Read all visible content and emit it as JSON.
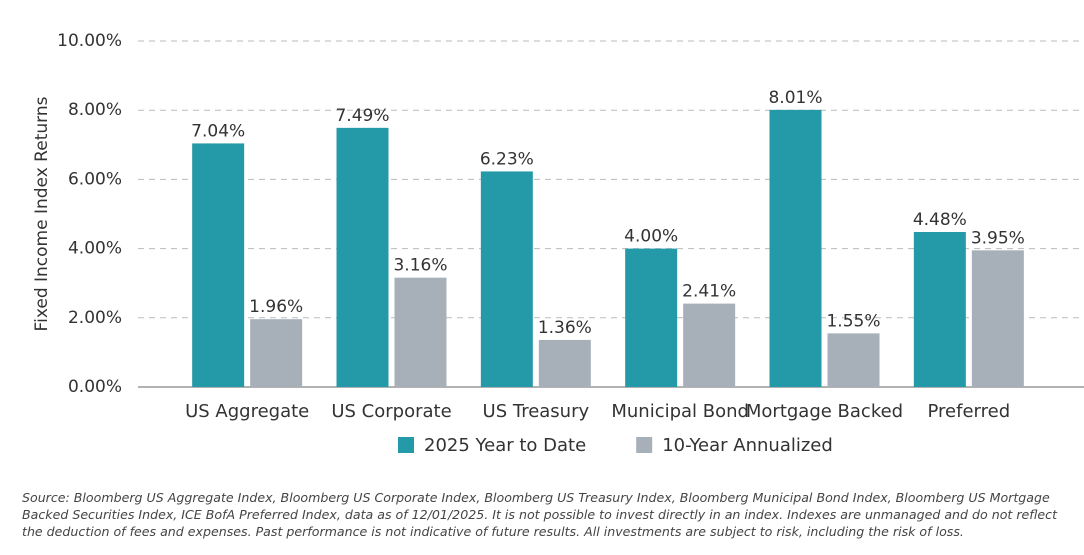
{
  "chart_data": {
    "type": "bar",
    "y_label": "Fixed Income Index Returns",
    "categories": [
      "US Aggregate",
      "US Corporate",
      "US Treasury",
      "Municipal Bond",
      "Mortgage Backed",
      "Preferred"
    ],
    "series": [
      {
        "name": "2025 Year to Date",
        "color": "#2499a8",
        "values": [
          7.04,
          7.49,
          6.23,
          4.0,
          8.01,
          4.48
        ],
        "value_labels": [
          "7.04%",
          "7.49%",
          "6.23%",
          "4.00%",
          "8.01%",
          "4.48%"
        ]
      },
      {
        "name": "10-Year Annualized",
        "color": "#a7afb9",
        "values": [
          1.96,
          3.16,
          1.36,
          2.41,
          1.55,
          3.95
        ],
        "value_labels": [
          "1.96%",
          "3.16%",
          "1.36%",
          "2.41%",
          "1.55%",
          "3.95%"
        ]
      }
    ],
    "ylim": [
      0,
      10
    ],
    "yticks": [
      {
        "value": 0,
        "label": "0.00%"
      },
      {
        "value": 2,
        "label": "2.00%"
      },
      {
        "value": 4,
        "label": "4.00%"
      },
      {
        "value": 6,
        "label": "6.00%"
      },
      {
        "value": 8,
        "label": "8.00%"
      },
      {
        "value": 10,
        "label": "10.00%"
      }
    ],
    "grid": true,
    "legend": "bottom",
    "note": "Source: Bloomberg US Aggregate Index, Bloomberg US Corporate Index, Bloomberg US Treasury Index, Bloomberg Municipal Bond Index, Bloomberg US Mortgage Backed Securities Index, ICE BofA Preferred Index, data as of 12/01/2025. It is not possible to invest directly in an index. Indexes are unmanaged and do not reflect the deduction of fees and expenses. Past performance is not indicative of future results. All investments are subject to risk, including the risk of loss."
  }
}
